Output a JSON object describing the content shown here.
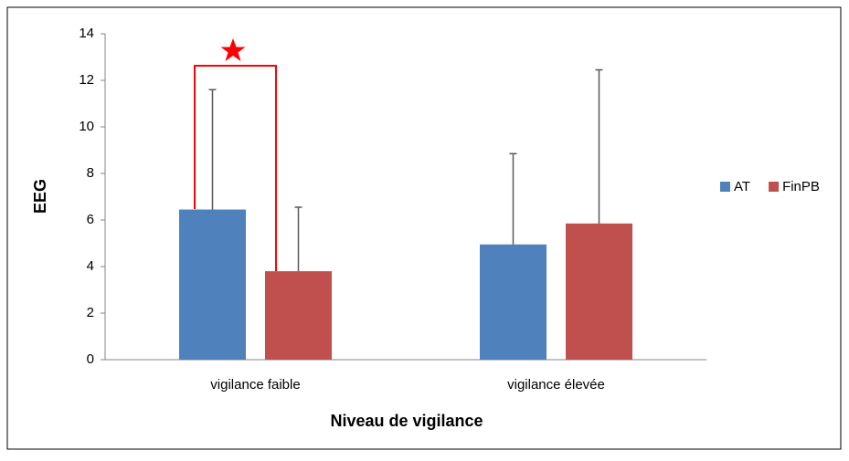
{
  "chart_data": {
    "type": "bar",
    "x_label": "Niveau de vigilance",
    "y_label": "EEG",
    "categories": [
      "vigilance faible",
      "vigilance élevée"
    ],
    "series": [
      {
        "name": "AT",
        "color": "#4f81bd",
        "values": [
          6.45,
          4.95
        ],
        "errors": [
          5.15,
          3.9
        ]
      },
      {
        "name": "FinPB",
        "color": "#c0504d",
        "values": [
          3.8,
          5.85
        ],
        "errors": [
          2.75,
          6.6
        ]
      }
    ],
    "ylim": [
      0,
      14
    ],
    "yticks": [
      0,
      2,
      4,
      6,
      8,
      10,
      12,
      14
    ],
    "legend": "right"
  }
}
